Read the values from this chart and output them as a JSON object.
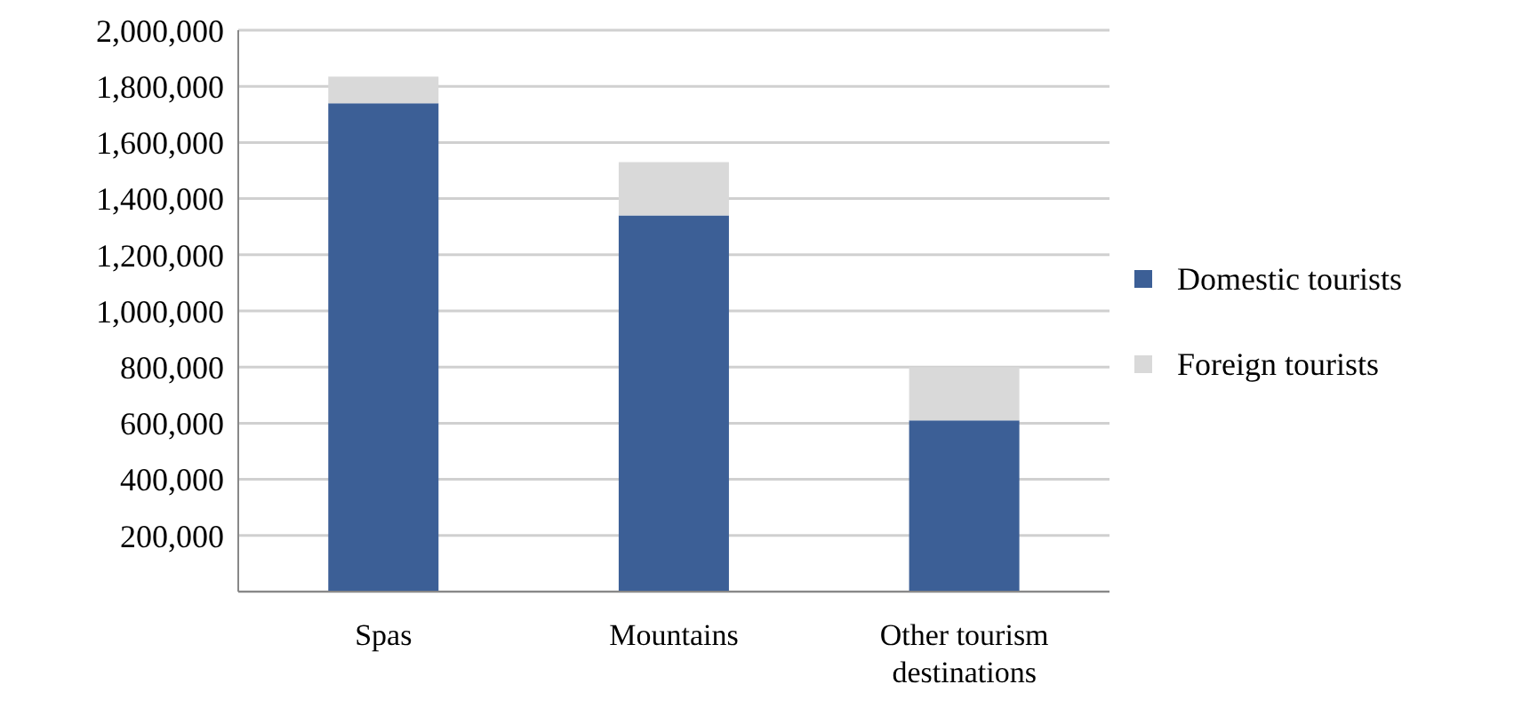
{
  "chart_data": {
    "type": "bar",
    "stacked": true,
    "categories": [
      "Spas",
      "Mountains",
      "Other tourism destinations"
    ],
    "series": [
      {
        "name": "Domestic tourists",
        "color": "#3c5f96",
        "values": [
          1740000,
          1340000,
          610000
        ]
      },
      {
        "name": "Foreign tourists",
        "color": "#d9d9d9",
        "values": [
          95000,
          190000,
          190000
        ]
      }
    ],
    "ylim": [
      0,
      2000000
    ],
    "yticks": [
      {
        "value": 0,
        "label": null
      },
      {
        "value": 200000,
        "label": "200,000"
      },
      {
        "value": 400000,
        "label": "400,000"
      },
      {
        "value": 600000,
        "label": "600,000"
      },
      {
        "value": 800000,
        "label": "800,000"
      },
      {
        "value": 1000000,
        "label": "1,000,000"
      },
      {
        "value": 1200000,
        "label": "1,200,000"
      },
      {
        "value": 1400000,
        "label": "1,400,000"
      },
      {
        "value": 1600000,
        "label": "1,600,000"
      },
      {
        "value": 1800000,
        "label": "1,800,000"
      },
      {
        "value": 2000000,
        "label": "2,000,000"
      }
    ],
    "grid": "y",
    "legend": "right"
  }
}
